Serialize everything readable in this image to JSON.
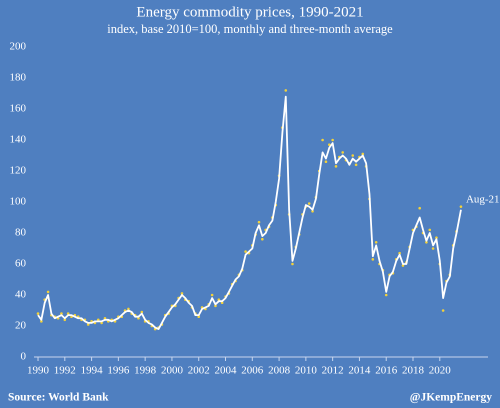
{
  "chart_data": {
    "type": "line",
    "title": "Energy commodity prices, 1990-2021",
    "subtitle": "index, base 2010=100, monthly and three-month average",
    "source": "Source: World Bank",
    "credit": "@JKempEnergy",
    "annotation": "Aug-21",
    "x": [
      1990,
      1990.25,
      1990.5,
      1990.75,
      1991,
      1991.25,
      1991.5,
      1991.75,
      1992,
      1992.25,
      1992.5,
      1992.75,
      1993,
      1993.25,
      1993.5,
      1993.75,
      1994,
      1994.25,
      1994.5,
      1994.75,
      1995,
      1995.25,
      1995.5,
      1995.75,
      1996,
      1996.25,
      1996.5,
      1996.75,
      1997,
      1997.25,
      1997.5,
      1997.75,
      1998,
      1998.25,
      1998.5,
      1998.75,
      1999,
      1999.25,
      1999.5,
      1999.75,
      2000,
      2000.25,
      2000.5,
      2000.75,
      2001,
      2001.25,
      2001.5,
      2001.75,
      2002,
      2002.25,
      2002.5,
      2002.75,
      2003,
      2003.25,
      2003.5,
      2003.75,
      2004,
      2004.25,
      2004.5,
      2004.75,
      2005,
      2005.25,
      2005.5,
      2005.75,
      2006,
      2006.25,
      2006.5,
      2006.75,
      2007,
      2007.25,
      2007.5,
      2007.75,
      2008,
      2008.25,
      2008.5,
      2008.75,
      2009,
      2009.25,
      2009.5,
      2009.75,
      2010,
      2010.25,
      2010.5,
      2010.75,
      2011,
      2011.25,
      2011.5,
      2011.75,
      2012,
      2012.25,
      2012.5,
      2012.75,
      2013,
      2013.25,
      2013.5,
      2013.75,
      2014,
      2014.25,
      2014.5,
      2014.75,
      2015,
      2015.25,
      2015.5,
      2015.75,
      2016,
      2016.25,
      2016.5,
      2016.75,
      2017,
      2017.25,
      2017.5,
      2017.75,
      2018,
      2018.25,
      2018.5,
      2018.75,
      2019,
      2019.25,
      2019.5,
      2019.75,
      2020,
      2020.25,
      2020.5,
      2020.75,
      2021,
      2021.25,
      2021.58
    ],
    "series": [
      {
        "color": "#ffffff",
        "values": [
          27,
          24,
          35,
          40,
          28,
          25,
          26,
          27,
          25,
          27,
          27,
          26,
          25,
          25,
          23,
          22,
          22,
          23,
          23,
          23,
          24,
          24,
          23,
          24,
          25,
          27,
          29,
          30,
          29,
          26,
          26,
          28,
          24,
          22,
          21,
          19,
          18,
          22,
          26,
          29,
          32,
          34,
          37,
          40,
          38,
          35,
          33,
          27,
          27,
          31,
          32,
          33,
          38,
          34,
          36,
          36,
          38,
          42,
          46,
          50,
          52,
          57,
          66,
          68,
          70,
          80,
          85,
          78,
          80,
          85,
          88,
          100,
          115,
          145,
          168,
          95,
          62,
          70,
          80,
          90,
          98,
          97,
          95,
          102,
          118,
          132,
          128,
          135,
          138,
          125,
          128,
          130,
          128,
          124,
          128,
          126,
          128,
          130,
          125,
          105,
          65,
          72,
          62,
          55,
          42,
          52,
          55,
          62,
          66,
          60,
          60,
          70,
          80,
          85,
          90,
          82,
          75,
          80,
          72,
          76,
          62,
          38,
          48,
          52,
          70,
          80,
          95
        ]
      },
      {
        "color": "#f2d13a",
        "values": [
          28,
          23,
          37,
          42,
          27,
          26,
          25,
          28,
          24,
          28,
          26,
          27,
          26,
          24,
          24,
          21,
          23,
          22,
          24,
          22,
          25,
          23,
          24,
          23,
          26,
          26,
          30,
          31,
          28,
          27,
          25,
          29,
          23,
          23,
          20,
          18,
          19,
          21,
          27,
          28,
          33,
          33,
          38,
          41,
          37,
          36,
          32,
          28,
          26,
          32,
          31,
          34,
          40,
          33,
          37,
          35,
          39,
          41,
          47,
          49,
          53,
          56,
          68,
          67,
          72,
          79,
          87,
          76,
          82,
          84,
          90,
          98,
          117,
          148,
          172,
          92,
          60,
          71,
          79,
          92,
          97,
          99,
          94,
          103,
          120,
          140,
          126,
          137,
          140,
          123,
          129,
          132,
          127,
          125,
          130,
          124,
          129,
          131,
          123,
          102,
          63,
          74,
          60,
          56,
          40,
          53,
          54,
          63,
          67,
          59,
          61,
          71,
          82,
          84,
          96,
          80,
          74,
          82,
          70,
          77,
          60,
          30,
          49,
          53,
          72,
          81,
          97
        ]
      }
    ],
    "xlim": [
      1989.7,
      2023.6
    ],
    "xticks": [
      1990,
      1992,
      1994,
      1996,
      1998,
      2000,
      2002,
      2004,
      2006,
      2008,
      2010,
      2012,
      2014,
      2016,
      2018,
      2020
    ],
    "ylim": [
      0,
      200
    ],
    "yticks": [
      0,
      20,
      40,
      60,
      80,
      100,
      120,
      140,
      160,
      180,
      200
    ],
    "grid": false
  }
}
